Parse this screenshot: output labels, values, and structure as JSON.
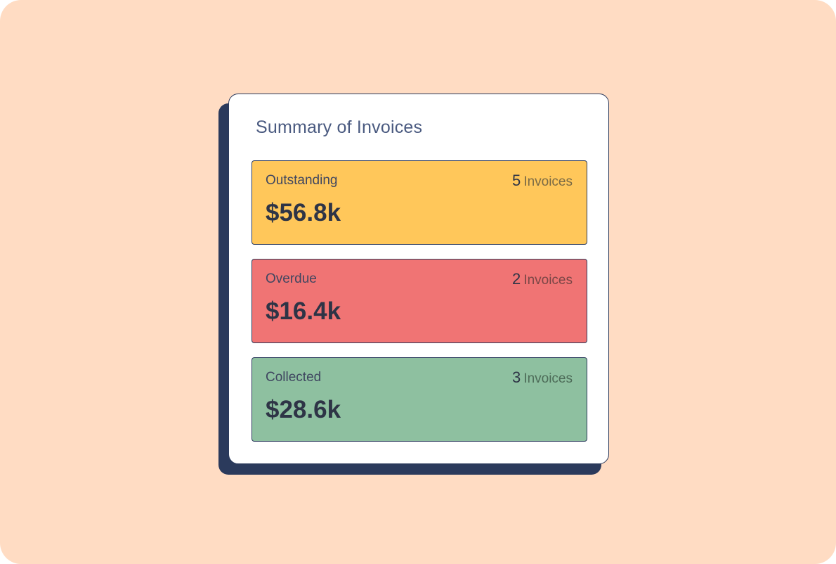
{
  "summary": {
    "title": "Summary of Invoices",
    "tiles": [
      {
        "label": "Outstanding",
        "count": "5",
        "count_unit": "Invoices",
        "amount": "$56.8k",
        "color": "#FFC75A",
        "unit_color": "#7A6A45"
      },
      {
        "label": "Overdue",
        "count": "2",
        "count_unit": "Invoices",
        "amount": "$16.4k",
        "color": "#F07474",
        "unit_color": "#7A4646"
      },
      {
        "label": "Collected",
        "count": "3",
        "count_unit": "Invoices",
        "amount": "$28.6k",
        "color": "#8EC0A0",
        "unit_color": "#4D6B58"
      }
    ]
  }
}
